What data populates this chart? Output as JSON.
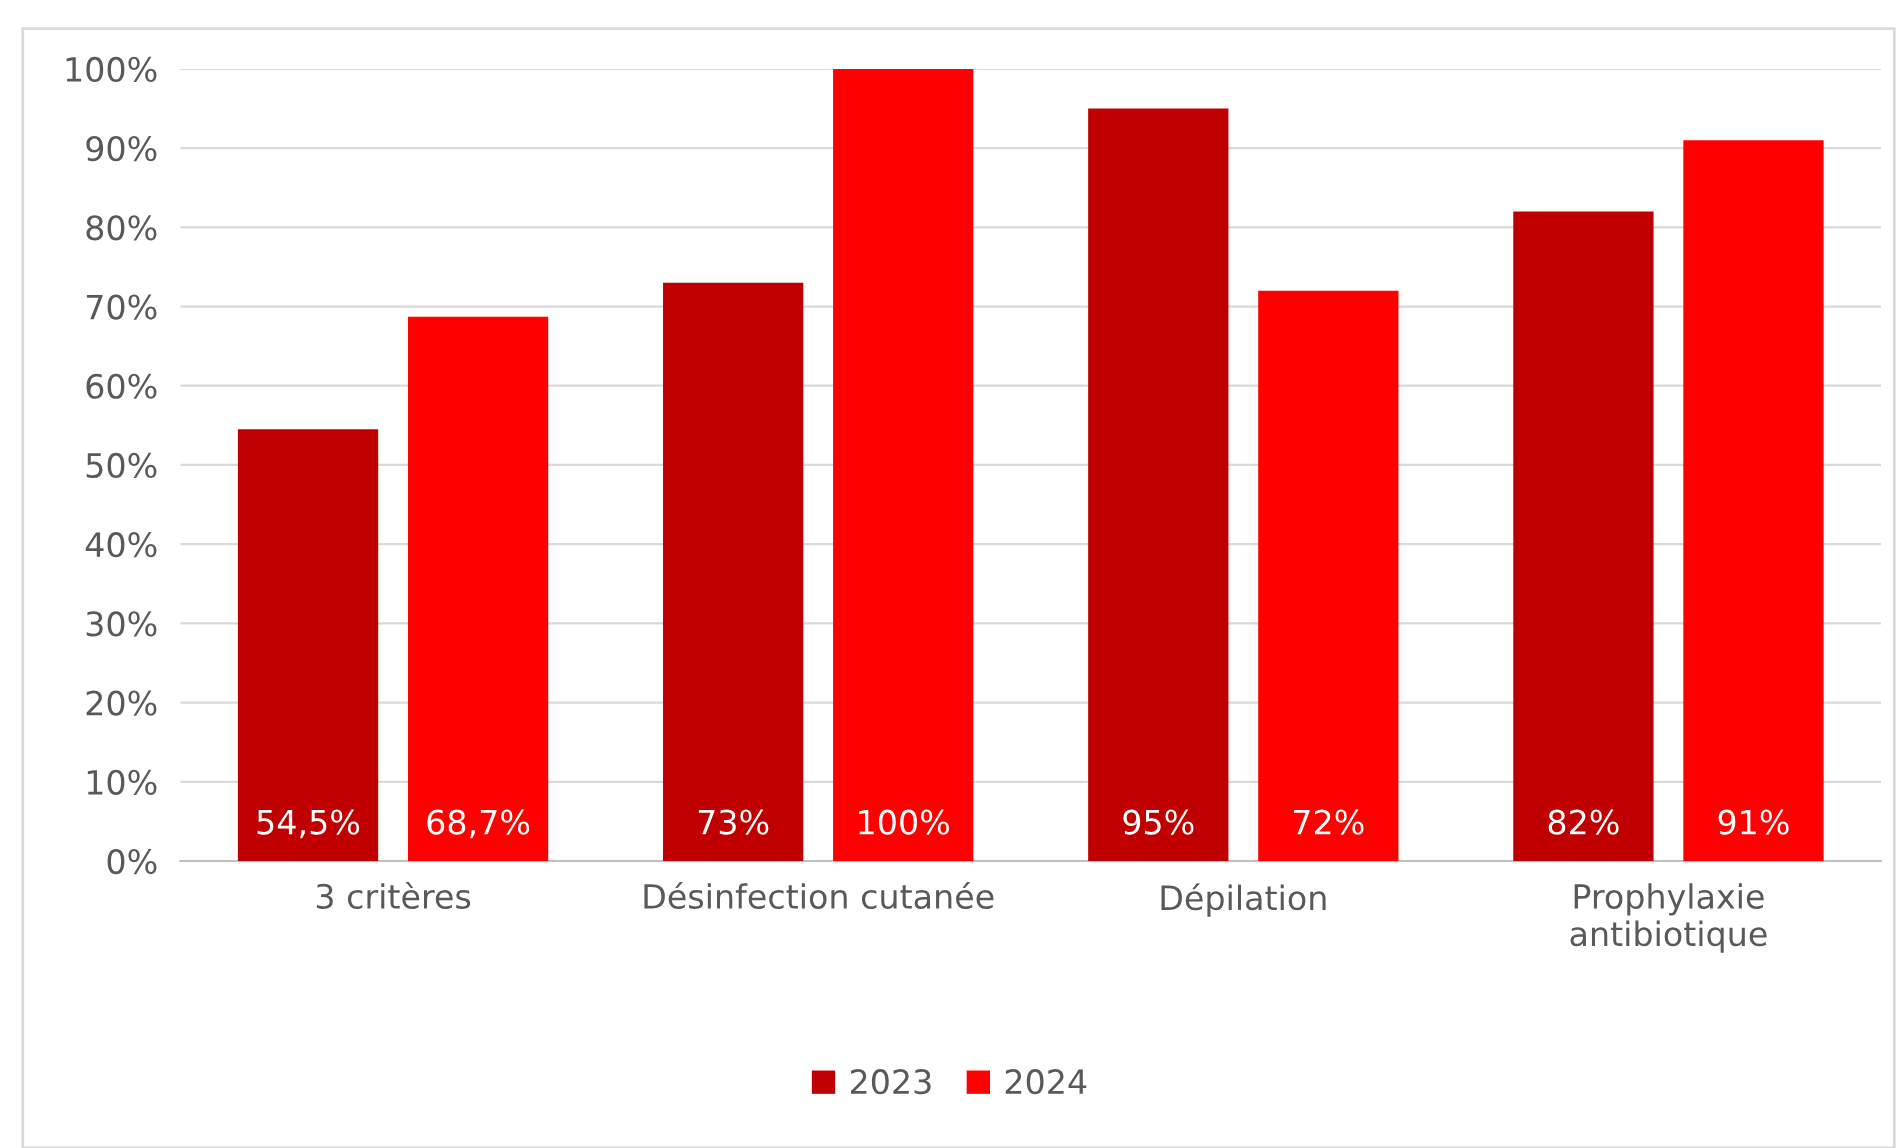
{
  "chart_data": {
    "type": "bar",
    "categories": [
      "3 critères",
      "Désinfection cutanée",
      "Dépilation",
      "Prophylaxie\nantibiotique"
    ],
    "series": [
      {
        "name": "2023",
        "color": "#c00000",
        "values": [
          54.5,
          73,
          95,
          82
        ],
        "value_labels": [
          "54,5%",
          "73%",
          "95%",
          "82%"
        ]
      },
      {
        "name": "2024",
        "color": "#ff0000",
        "values": [
          68.7,
          100,
          72,
          91
        ],
        "value_labels": [
          "68,7%",
          "100%",
          "72%",
          "91%"
        ]
      }
    ],
    "ylim": [
      0,
      100
    ],
    "yticks": [
      {
        "value": 0,
        "label": "0%"
      },
      {
        "value": 10,
        "label": "10%"
      },
      {
        "value": 20,
        "label": "20%"
      },
      {
        "value": 30,
        "label": "30%"
      },
      {
        "value": 40,
        "label": "40%"
      },
      {
        "value": 50,
        "label": "50%"
      },
      {
        "value": 60,
        "label": "60%"
      },
      {
        "value": 70,
        "label": "70%"
      },
      {
        "value": 80,
        "label": "80%"
      },
      {
        "value": 90,
        "label": "90%"
      },
      {
        "value": 100,
        "label": "100%"
      }
    ],
    "grid": "y",
    "legend": "bottom"
  }
}
